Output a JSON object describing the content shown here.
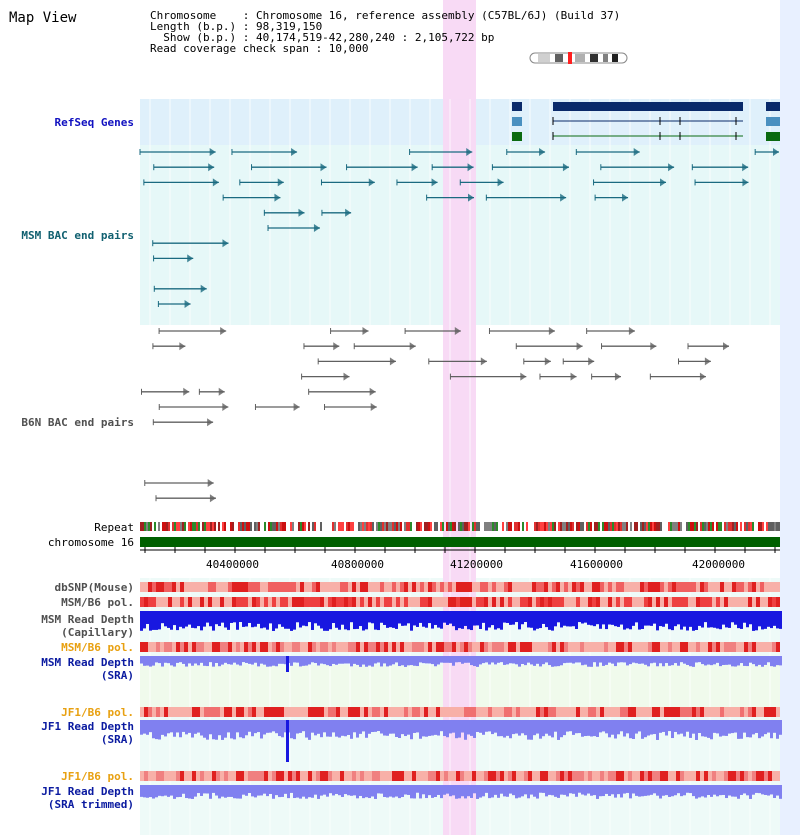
{
  "header": {
    "title": "Map View",
    "chromosome_line": "Chromosome    : Chromosome 16, reference assembly (C57BL/6J) (Build 37)",
    "length_line": "Length (b.p.) : 98,319,150",
    "show_line": "  Show (b.p.) : 40,174,519-42,280,240 : 2,105,722 bp",
    "span_line": "Read coverage check span : 10,000"
  },
  "tracks": {
    "refseq": "RefSeq Genes",
    "msm_bac": "MSM BAC end pairs",
    "b6n_bac": "B6N BAC end pairs",
    "repeat": "Repeat",
    "chrom": "chromosome 16",
    "dbsnp": "dbSNP(Mouse)",
    "msm_pol1": "MSM/B6 pol.",
    "msm_depth_cap_1": "MSM Read Depth",
    "msm_depth_cap_2": "(Capillary)",
    "msm_pol2": "MSM/B6 pol.",
    "msm_depth_sra_1": "MSM Read Depth",
    "msm_depth_sra_2": "(SRA)",
    "jf1_pol1": "JF1/B6 pol.",
    "jf1_depth_sra_1": "JF1 Read Depth",
    "jf1_depth_sra_2": "(SRA)",
    "jf1_pol2": "JF1/B6 pol.",
    "jf1_depth_trim_1": "JF1 Read Depth",
    "jf1_depth_trim_2": "(SRA trimmed)"
  },
  "axis": {
    "ticks": [
      "40400000",
      "40800000",
      "41200000",
      "41600000",
      "42000000"
    ]
  },
  "colors": {
    "refseq_bg": "#dff0fb",
    "msm_bg": "#e6f8f8",
    "highlight": "#f8d8f4",
    "gene_dark": "#0a2a6a",
    "gene_mid": "#4a90c0",
    "gene_green": "#0a6a10",
    "msm_pair": "#1a6a80",
    "b6n_pair": "#606060",
    "chrom_green": "#006000",
    "depth_blue": "#1818e0",
    "depth_light": "#8080f0"
  }
}
